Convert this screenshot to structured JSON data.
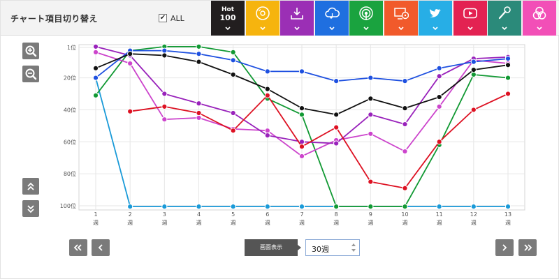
{
  "toolbar": {
    "title": "チャート項目切り替え",
    "all_label": "ALL",
    "all_checked_glyph": "✔",
    "categories": [
      {
        "name": "hot100",
        "label_top": "Hot",
        "label_bottom": "100",
        "color": "#221e1f",
        "icon": "hot100-text"
      },
      {
        "name": "cd",
        "color": "#f6b40e",
        "icon": "cd-disc-icon"
      },
      {
        "name": "download",
        "color": "#9b2fb5",
        "icon": "download-icon"
      },
      {
        "name": "streaming",
        "color": "#1f6fe0",
        "icon": "cloud-music-icon"
      },
      {
        "name": "radio",
        "color": "#1aa33f",
        "icon": "radio-broadcast-icon"
      },
      {
        "name": "lookup",
        "color": "#f15a2b",
        "icon": "monitor-disc-icon"
      },
      {
        "name": "twitter",
        "color": "#27aee6",
        "icon": "twitter-bird-icon"
      },
      {
        "name": "youtube",
        "color": "#e32252",
        "icon": "youtube-play-icon"
      },
      {
        "name": "karaoke",
        "color": "#2b8a7a",
        "icon": "microphone-icon"
      },
      {
        "name": "gyao",
        "color": "#f24fb7",
        "icon": "circles-icon"
      }
    ]
  },
  "side_controls": {
    "zoom_in": "zoom-in",
    "zoom_out": "zoom-out",
    "scroll_top": "scroll-top",
    "scroll_bottom": "scroll-bottom"
  },
  "footer": {
    "display_label": "画面表示",
    "week_value": "30週"
  },
  "chart_data": {
    "type": "line",
    "y_inverted": true,
    "ylim": [
      1,
      100
    ],
    "y_ticks": [
      {
        "value": 1,
        "label": "1位"
      },
      {
        "value": 20,
        "label": "20位"
      },
      {
        "value": 40,
        "label": "40位"
      },
      {
        "value": 60,
        "label": "60位"
      },
      {
        "value": 80,
        "label": "80位"
      },
      {
        "value": 100,
        "label": "100位"
      }
    ],
    "x": [
      1,
      2,
      3,
      4,
      5,
      6,
      7,
      8,
      9,
      10,
      11,
      12,
      13
    ],
    "x_unit": "週",
    "grid": true,
    "series": [
      {
        "key": "twitter",
        "color": "#1a9ad8",
        "values": [
          20,
          101,
          101,
          101,
          101,
          101,
          101,
          101,
          101,
          101,
          101,
          101,
          101
        ]
      },
      {
        "key": "radio",
        "color": "#119933",
        "values": [
          31,
          3,
          0,
          0,
          4,
          33,
          43,
          101,
          101,
          101,
          62,
          18,
          20
        ]
      },
      {
        "key": "gyao",
        "color": "#cc44cc",
        "values": [
          4,
          11,
          46,
          45,
          52,
          53,
          69,
          59,
          55,
          66,
          38,
          9,
          11
        ]
      },
      {
        "key": "download",
        "color": "#9922bb",
        "values": [
          0,
          6,
          30,
          36,
          42,
          56,
          60,
          61,
          43,
          49,
          19,
          8,
          7
        ]
      },
      {
        "key": "lookup",
        "color": "#dd1122",
        "values": [
          null,
          41,
          38,
          42,
          53,
          31,
          63,
          51,
          85,
          89,
          60,
          40,
          30
        ]
      },
      {
        "key": "streaming",
        "color": "#1e50e0",
        "values": [
          20,
          3,
          3,
          5,
          9,
          16,
          16,
          22,
          20,
          22,
          14,
          10,
          8
        ]
      },
      {
        "key": "hot100",
        "color": "#111111",
        "values": [
          14,
          5,
          6,
          10,
          18,
          27,
          39,
          43,
          33,
          39,
          32,
          15,
          12
        ]
      }
    ]
  }
}
